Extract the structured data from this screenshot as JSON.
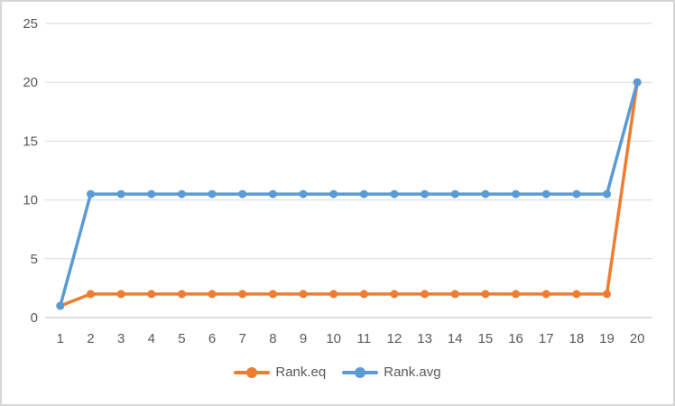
{
  "chart_data": {
    "type": "line",
    "categories": [
      "1",
      "2",
      "3",
      "4",
      "5",
      "6",
      "7",
      "8",
      "9",
      "10",
      "11",
      "12",
      "13",
      "14",
      "15",
      "16",
      "17",
      "18",
      "19",
      "20"
    ],
    "series": [
      {
        "name": "Rank.eq",
        "color": "#ED7D31",
        "values": [
          1,
          2,
          2,
          2,
          2,
          2,
          2,
          2,
          2,
          2,
          2,
          2,
          2,
          2,
          2,
          2,
          2,
          2,
          2,
          20
        ]
      },
      {
        "name": "Rank.avg",
        "color": "#5B9BD5",
        "values": [
          1,
          10.5,
          10.5,
          10.5,
          10.5,
          10.5,
          10.5,
          10.5,
          10.5,
          10.5,
          10.5,
          10.5,
          10.5,
          10.5,
          10.5,
          10.5,
          10.5,
          10.5,
          10.5,
          20
        ]
      }
    ],
    "title": "",
    "xlabel": "",
    "ylabel": "",
    "ylim": [
      0,
      25
    ],
    "yticks": [
      0,
      5,
      10,
      15,
      20,
      25
    ],
    "grid": true,
    "legend_position": "bottom",
    "marker": "circle",
    "gridline_color": "#d9d9d9",
    "axis_line_color": "#bfbfbf",
    "tick_label_color": "#595959",
    "frame_border_color": "#d6d6d6"
  }
}
